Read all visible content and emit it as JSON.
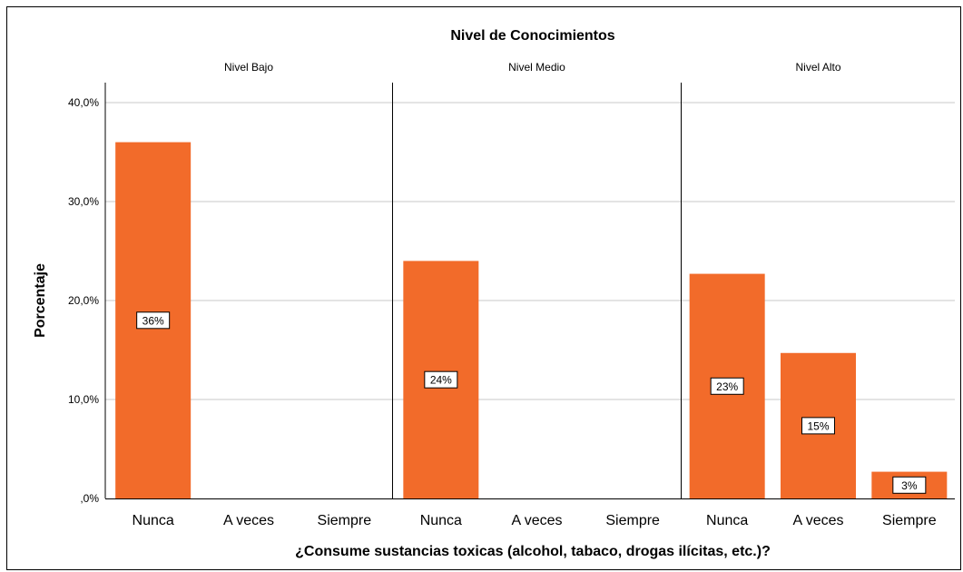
{
  "chart_data": {
    "type": "bar",
    "title": "Nivel de Conocimientos",
    "xlabel": "¿Consume sustancias toxicas (alcohol, tabaco, drogas ilícitas, etc.)?",
    "ylabel": "Porcentaje",
    "ylim": [
      0,
      42
    ],
    "yticks": [
      0,
      10,
      20,
      30,
      40
    ],
    "ytick_labels": [
      ",0%",
      "10,0%",
      "20,0%",
      "30,0%",
      "40,0%"
    ],
    "categories": [
      "Nunca",
      "A veces",
      "Siempre"
    ],
    "bar_color": "#f26b2a",
    "grid": true,
    "panels": [
      {
        "name": "Nivel Bajo",
        "values": [
          36,
          0,
          0
        ],
        "labels": [
          "36%",
          "",
          ""
        ]
      },
      {
        "name": "Nivel Medio",
        "values": [
          24,
          0,
          0
        ],
        "labels": [
          "24%",
          "",
          ""
        ]
      },
      {
        "name": "Nivel Alto",
        "values": [
          22.7,
          14.7,
          2.7
        ],
        "labels": [
          "23%",
          "15%",
          "3%"
        ]
      }
    ]
  }
}
